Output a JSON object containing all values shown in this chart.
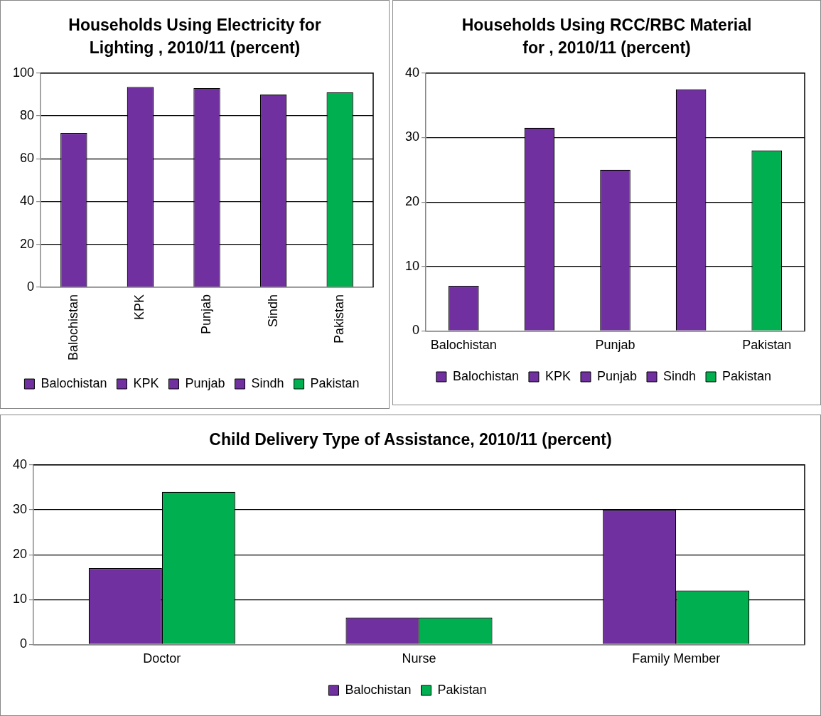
{
  "chart_data": [
    {
      "type": "bar",
      "title": "Households Using Electricity for Lighting , 2010/11 (percent)",
      "categories": [
        "Balochistan",
        "KPK",
        "Punjab",
        "Sindh",
        "Pakistan"
      ],
      "series": [
        {
          "name": "Balochistan",
          "color": "#7030a0",
          "values": [
            72,
            null,
            null,
            null,
            null
          ]
        },
        {
          "name": "KPK",
          "color": "#7030a0",
          "values": [
            null,
            93.5,
            null,
            null,
            null
          ]
        },
        {
          "name": "Punjab",
          "color": "#7030a0",
          "values": [
            null,
            null,
            93,
            null,
            null
          ]
        },
        {
          "name": "Sindh",
          "color": "#7030a0",
          "values": [
            null,
            null,
            null,
            90,
            null
          ]
        },
        {
          "name": "Pakistan",
          "color": "#00b050",
          "values": [
            null,
            null,
            null,
            null,
            91
          ]
        }
      ],
      "ylim": [
        0,
        100
      ],
      "yticks": [
        0,
        20,
        40,
        60,
        80,
        100
      ],
      "grid": "y",
      "legend": "bottom"
    },
    {
      "type": "bar",
      "title": "Households Using RCC/RBC Material for , 2010/11 (percent)",
      "categories": [
        "Balochistan",
        null,
        "Punjab",
        null,
        "Pakistan"
      ],
      "series": [
        {
          "name": "Balochistan",
          "color": "#7030a0",
          "values": [
            7,
            null,
            null,
            null,
            null
          ]
        },
        {
          "name": "KPK",
          "color": "#7030a0",
          "values": [
            null,
            31.5,
            null,
            null,
            null
          ]
        },
        {
          "name": "Punjab",
          "color": "#7030a0",
          "values": [
            null,
            null,
            25,
            null,
            null
          ]
        },
        {
          "name": "Sindh",
          "color": "#7030a0",
          "values": [
            null,
            null,
            null,
            37.5,
            null
          ]
        },
        {
          "name": "Pakistan",
          "color": "#00b050",
          "values": [
            null,
            null,
            null,
            null,
            28
          ]
        }
      ],
      "ylim": [
        0,
        40
      ],
      "yticks": [
        0,
        10,
        20,
        30,
        40
      ],
      "grid": "y",
      "legend": "bottom"
    },
    {
      "type": "bar",
      "title": "Child Delivery Type of Assistance, 2010/11 (percent)",
      "categories": [
        "Doctor",
        "Nurse",
        "Family Member"
      ],
      "series": [
        {
          "name": "Balochistan",
          "color": "#7030a0",
          "values": [
            17,
            6,
            30
          ]
        },
        {
          "name": "Pakistan",
          "color": "#00b050",
          "values": [
            34,
            6,
            12
          ]
        }
      ],
      "ylim": [
        0,
        40
      ],
      "yticks": [
        0,
        10,
        20,
        30,
        40
      ],
      "grid": "y",
      "legend": "bottom"
    }
  ]
}
